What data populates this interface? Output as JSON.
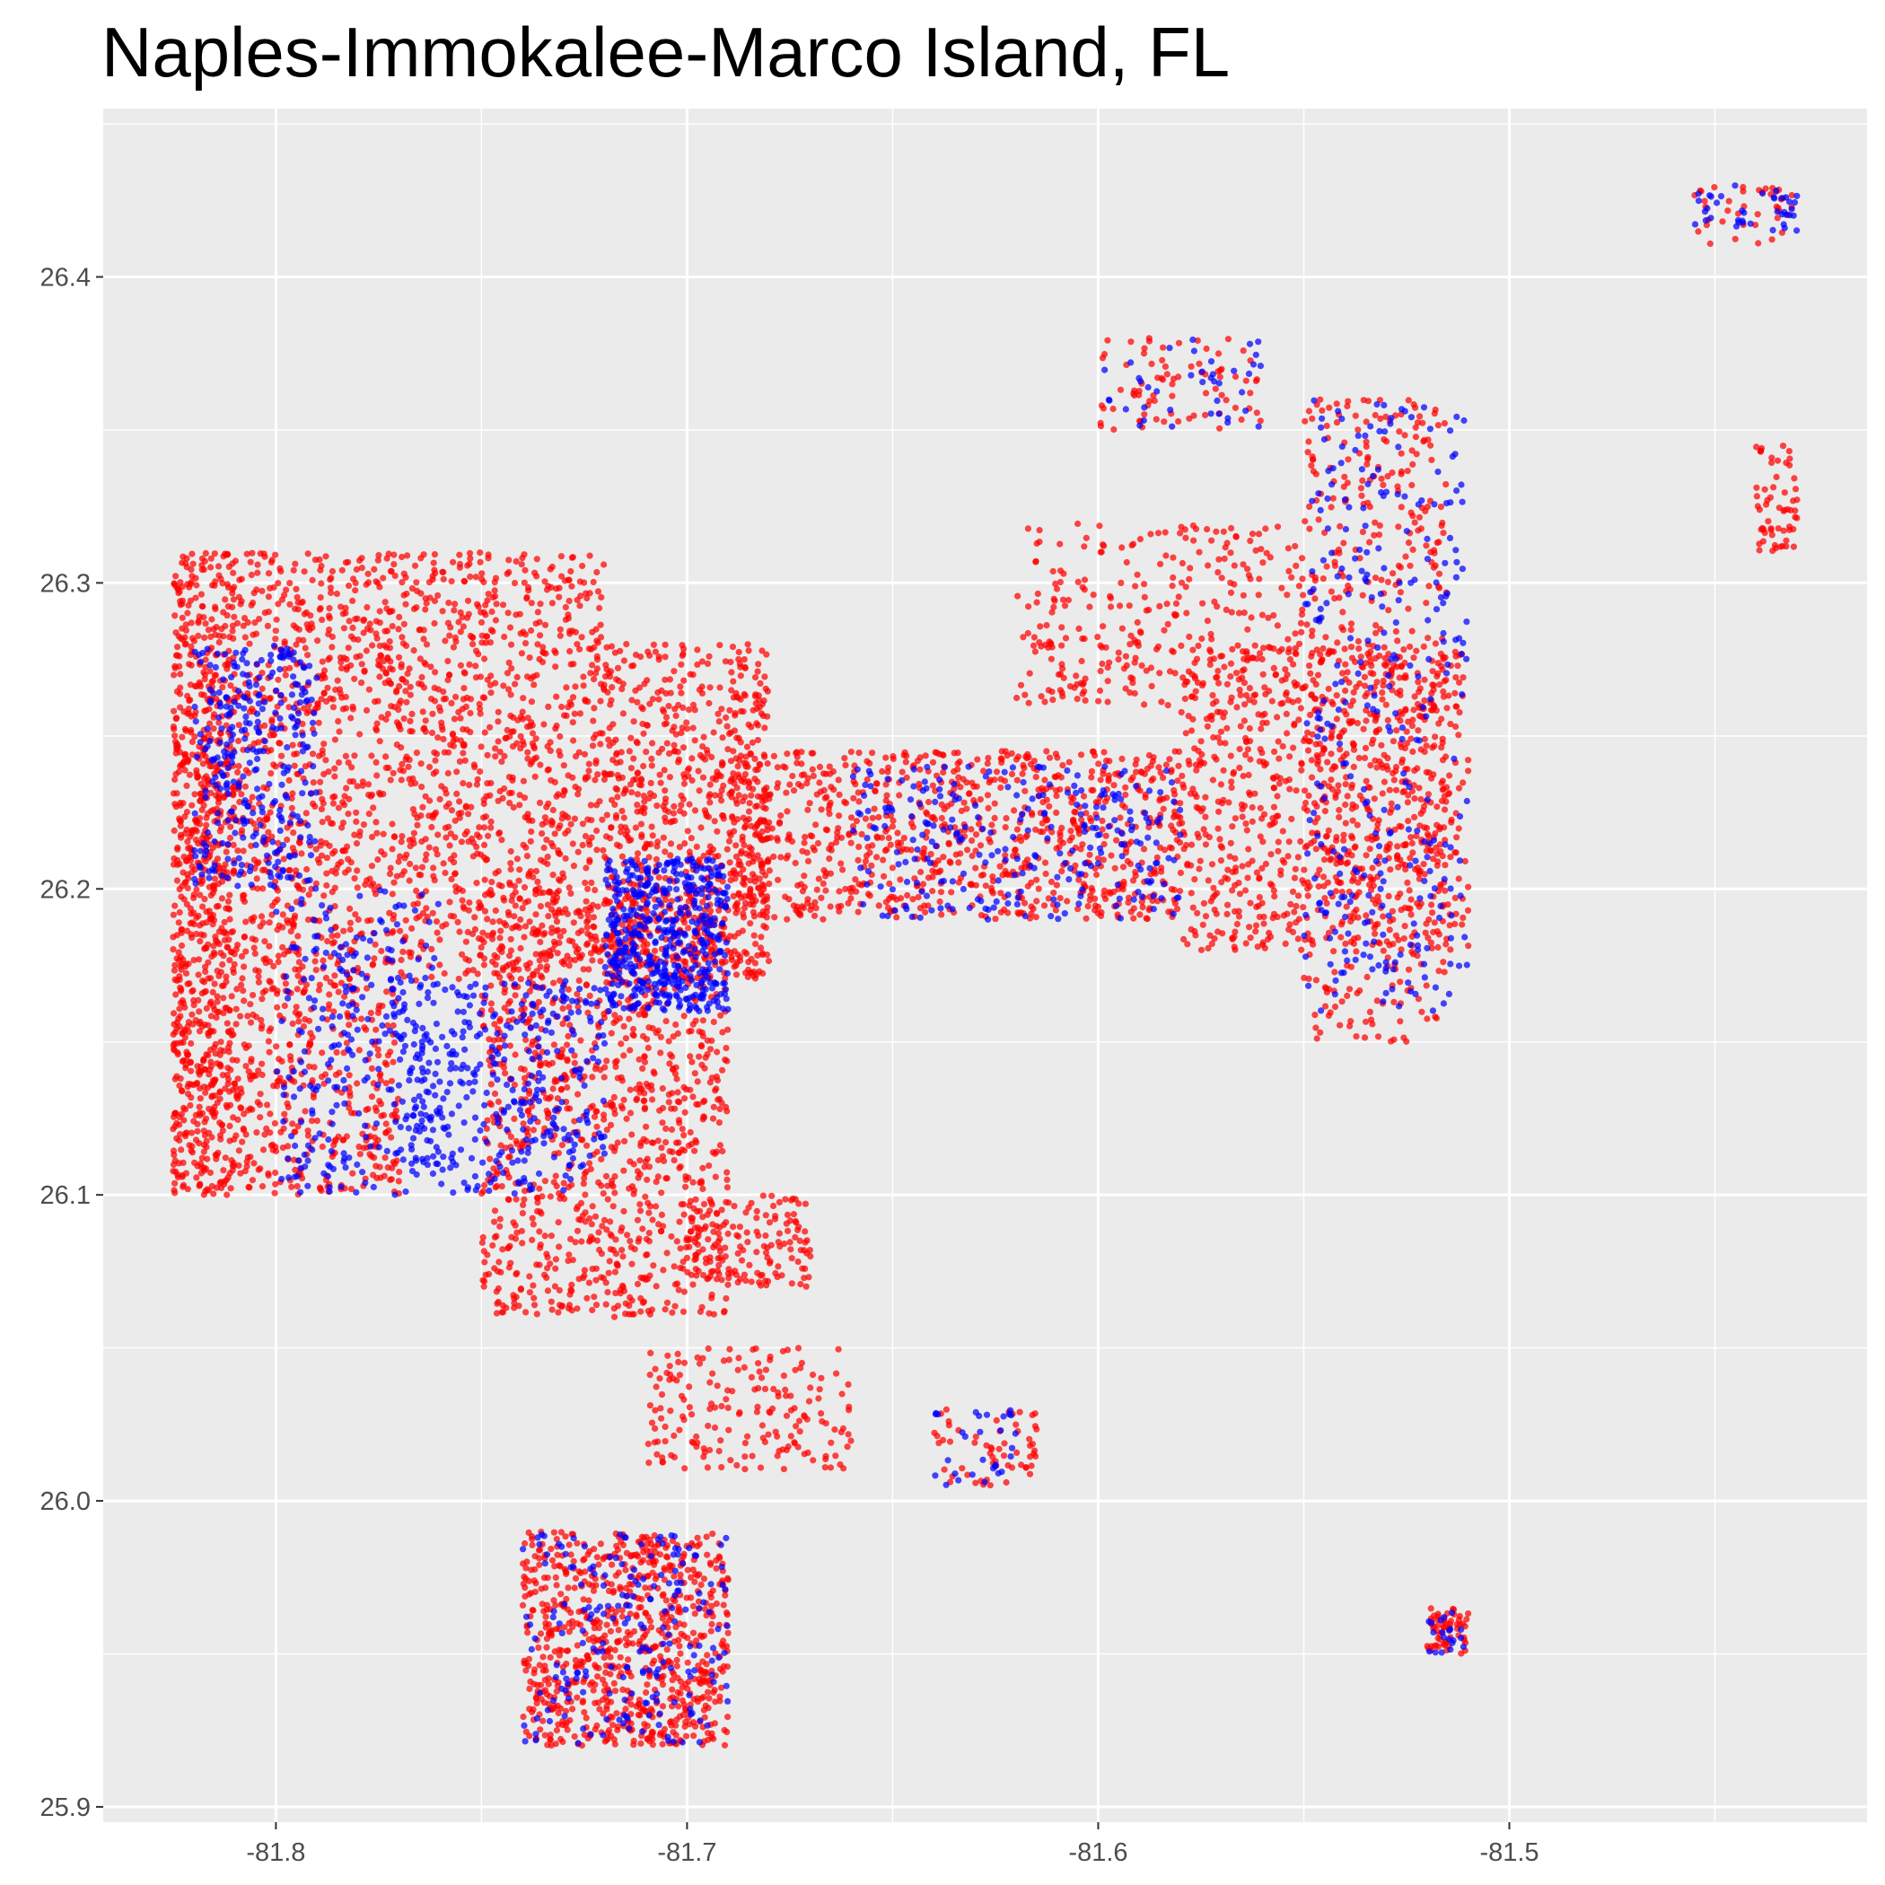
{
  "chart_data": {
    "type": "scatter",
    "title": "Naples-Immokalee-Marco Island, FL",
    "xlabel": "",
    "ylabel": "",
    "xlim": [
      -81.842,
      -81.413
    ],
    "ylim": [
      25.895,
      26.455
    ],
    "x_ticks": [
      -81.8,
      -81.7,
      -81.6,
      -81.5
    ],
    "x_tick_labels": [
      "-81.8",
      "-81.7",
      "-81.6",
      "-81.5"
    ],
    "y_ticks": [
      25.9,
      26.0,
      26.1,
      26.2,
      26.3,
      26.4
    ],
    "y_tick_labels": [
      "25.9",
      "26.0",
      "26.1",
      "26.2",
      "26.3",
      "26.4"
    ],
    "grid": true,
    "legend": "none",
    "colors": {
      "panel": "#EBEBEB",
      "grid": "#FFFFFF",
      "series_a": "#FF0000",
      "series_b": "#0000FF"
    },
    "series": [
      {
        "color": "#FF0000",
        "clusters": [
          {
            "x": [
              -81.825,
              -81.81
            ],
            "y": [
              26.1,
              26.31
            ],
            "n": 900
          },
          {
            "x": [
              -81.81,
              -81.77
            ],
            "y": [
              26.1,
              26.31
            ],
            "n": 1100
          },
          {
            "x": [
              -81.77,
              -81.72
            ],
            "y": [
              26.17,
              26.31
            ],
            "n": 900
          },
          {
            "x": [
              -81.75,
              -81.69
            ],
            "y": [
              26.06,
              26.2
            ],
            "n": 1100
          },
          {
            "x": [
              -81.72,
              -81.68
            ],
            "y": [
              26.17,
              26.28
            ],
            "n": 700
          },
          {
            "x": [
              -81.69,
              -81.58
            ],
            "y": [
              26.19,
              26.245
            ],
            "n": 900
          },
          {
            "x": [
              -81.58,
              -81.51
            ],
            "y": [
              26.18,
              26.28
            ],
            "n": 800
          },
          {
            "x": [
              -81.55,
              -81.515
            ],
            "y": [
              26.15,
              26.36
            ],
            "n": 500
          },
          {
            "x": [
              -81.62,
              -81.55
            ],
            "y": [
              26.26,
              26.32
            ],
            "n": 300
          },
          {
            "x": [
              -81.6,
              -81.56
            ],
            "y": [
              26.35,
              26.38
            ],
            "n": 80
          },
          {
            "x": [
              -81.74,
              -81.69
            ],
            "y": [
              25.92,
              25.99
            ],
            "n": 800
          },
          {
            "x": [
              -81.71,
              -81.66
            ],
            "y": [
              26.01,
              26.05
            ],
            "n": 180
          },
          {
            "x": [
              -81.7,
              -81.67
            ],
            "y": [
              26.07,
              26.1
            ],
            "n": 150
          },
          {
            "x": [
              -81.52,
              -81.51
            ],
            "y": [
              25.95,
              25.965
            ],
            "n": 60
          },
          {
            "x": [
              -81.44,
              -81.43
            ],
            "y": [
              26.31,
              26.345
            ],
            "n": 60
          },
          {
            "x": [
              -81.455,
              -81.43
            ],
            "y": [
              26.41,
              26.43
            ],
            "n": 40
          },
          {
            "x": [
              -81.64,
              -81.615
            ],
            "y": [
              26.005,
              26.03
            ],
            "n": 60
          }
        ]
      },
      {
        "color": "#0000FF",
        "clusters": [
          {
            "x": [
              -81.82,
              -81.79
            ],
            "y": [
              26.2,
              26.28
            ],
            "n": 300
          },
          {
            "x": [
              -81.72,
              -81.69
            ],
            "y": [
              26.16,
              26.21
            ],
            "n": 500
          },
          {
            "x": [
              -81.77,
              -81.72
            ],
            "y": [
              26.1,
              26.17
            ],
            "n": 350
          },
          {
            "x": [
              -81.8,
              -81.76
            ],
            "y": [
              26.1,
              26.2
            ],
            "n": 250
          },
          {
            "x": [
              -81.55,
              -81.51
            ],
            "y": [
              26.16,
              26.36
            ],
            "n": 300
          },
          {
            "x": [
              -81.66,
              -81.58
            ],
            "y": [
              26.19,
              26.24
            ],
            "n": 250
          },
          {
            "x": [
              -81.74,
              -81.69
            ],
            "y": [
              25.92,
              25.99
            ],
            "n": 200
          },
          {
            "x": [
              -81.455,
              -81.43
            ],
            "y": [
              26.415,
              26.43
            ],
            "n": 40
          },
          {
            "x": [
              -81.6,
              -81.56
            ],
            "y": [
              26.35,
              26.38
            ],
            "n": 40
          },
          {
            "x": [
              -81.52,
              -81.51
            ],
            "y": [
              25.95,
              25.965
            ],
            "n": 20
          },
          {
            "x": [
              -81.64,
              -81.62
            ],
            "y": [
              26.005,
              26.03
            ],
            "n": 30
          }
        ]
      }
    ]
  }
}
